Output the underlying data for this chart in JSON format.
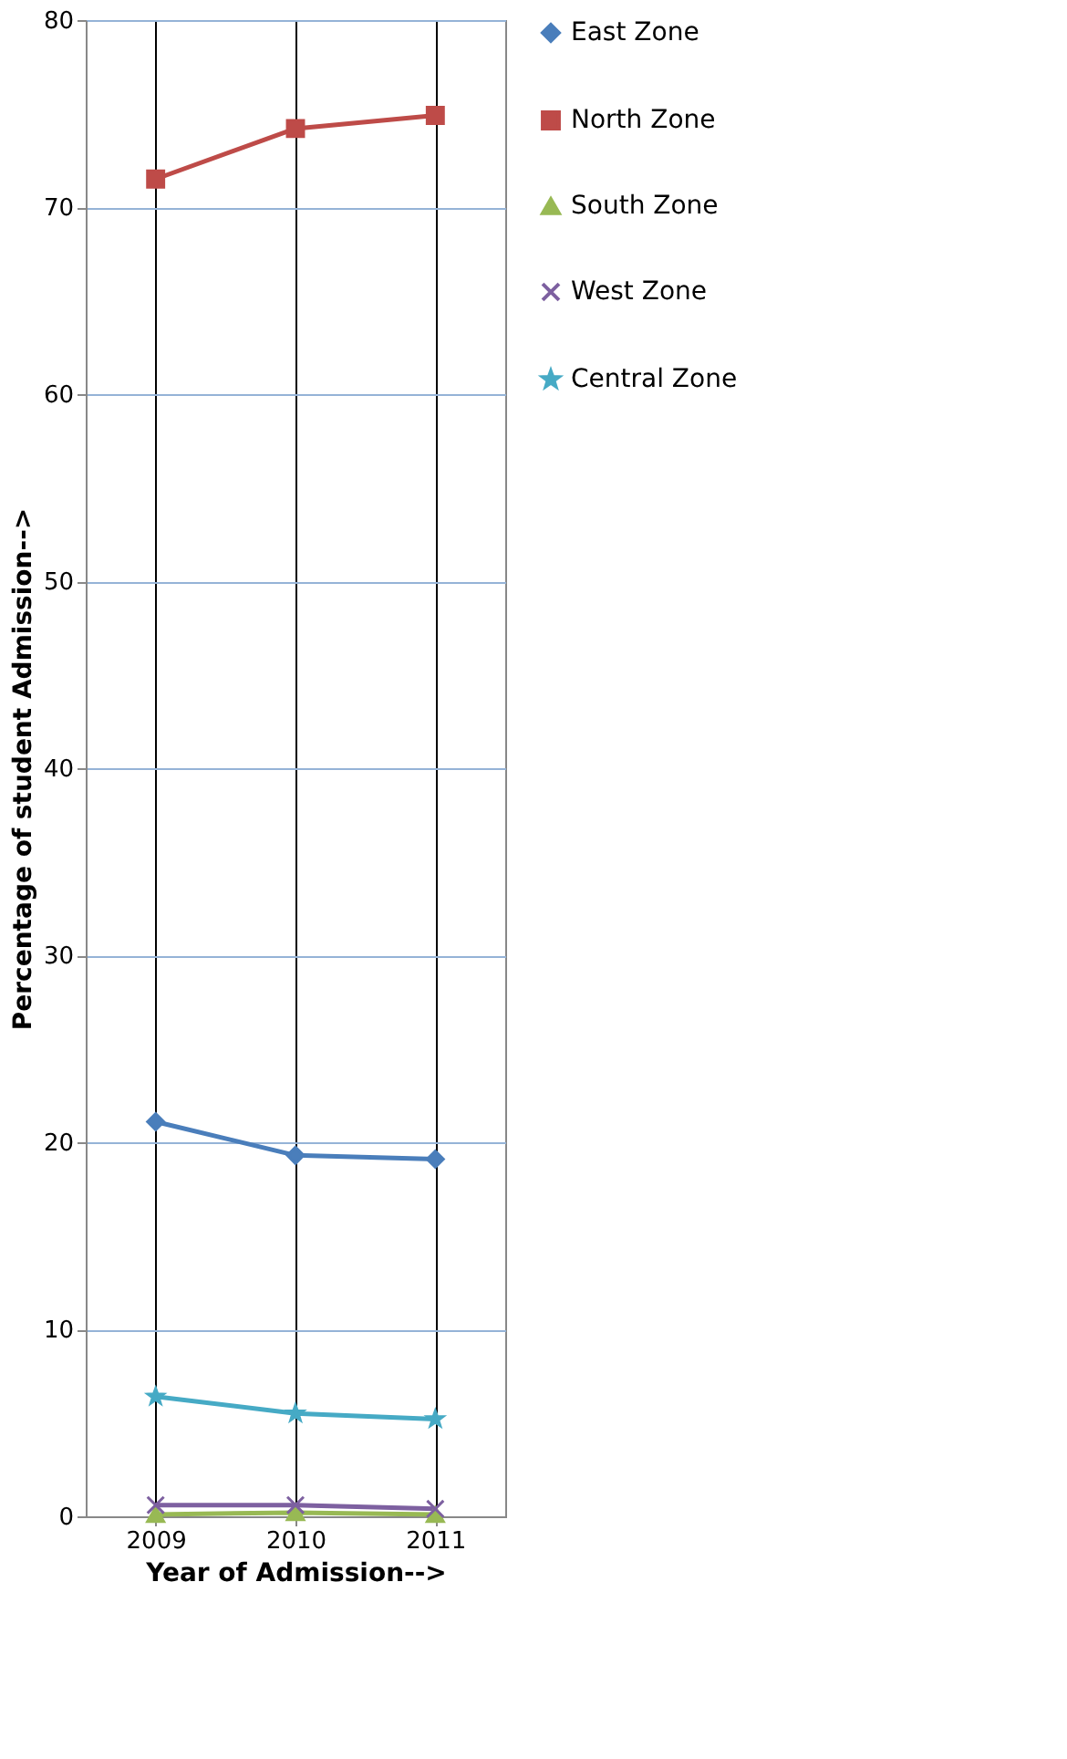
{
  "chart_data": {
    "type": "line",
    "xlabel": "Year of Admission-->",
    "ylabel": "Percentage of student Admission-->",
    "categories": [
      "2009",
      "2010",
      "2011"
    ],
    "series": [
      {
        "name": "East Zone",
        "color": "#4a7ebb",
        "marker": "diamond",
        "values": [
          21.1,
          19.3,
          19.1
        ]
      },
      {
        "name": "North Zone",
        "color": "#be4b48",
        "marker": "square",
        "values": [
          71.5,
          74.2,
          74.9
        ]
      },
      {
        "name": "South Zone",
        "color": "#98b954",
        "marker": "triangle",
        "values": [
          0.1,
          0.2,
          0.1
        ]
      },
      {
        "name": "West Zone",
        "color": "#7d60a0",
        "marker": "cross",
        "values": [
          0.6,
          0.6,
          0.4
        ]
      },
      {
        "name": "Central Zone",
        "color": "#46aac5",
        "marker": "star",
        "values": [
          6.4,
          5.5,
          5.2
        ]
      }
    ],
    "ylim": [
      0,
      80
    ],
    "yticks": [
      0,
      10,
      20,
      30,
      40,
      50,
      60,
      70,
      80
    ],
    "grid": true,
    "legend": "right",
    "line_style": "solid"
  }
}
